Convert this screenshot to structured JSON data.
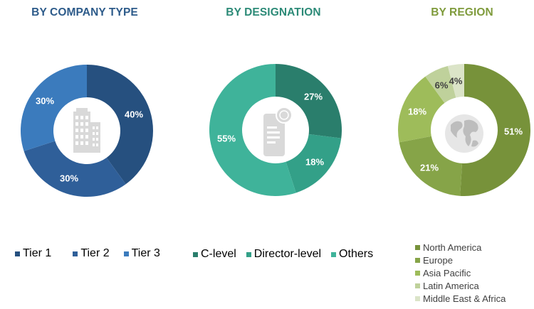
{
  "colors": {
    "tier1": "#26507f",
    "tier2": "#2f5f99",
    "tier3": "#3b7bbd",
    "clevel": "#2a7e6c",
    "director": "#33a088",
    "others": "#3fb39a",
    "north_america": "#77923a",
    "europe": "#86a448",
    "asia_pacific": "#9ebc5a",
    "latin_america": "#bfd19b",
    "mea": "#dbe4c8",
    "title_company": "#2d5b8a",
    "title_designation": "#2c8a77",
    "title_region": "#7f9b3c"
  },
  "chart_data": [
    {
      "type": "pie",
      "title": "BY COMPANY TYPE",
      "categories": [
        "Tier 1",
        "Tier 2",
        "Tier 3"
      ],
      "values": [
        40,
        30,
        30
      ],
      "labels": [
        "40%",
        "30%",
        "30%"
      ],
      "center_icon": "building-icon",
      "legend_position": "bottom"
    },
    {
      "type": "pie",
      "title": "BY DESIGNATION",
      "categories": [
        "C-level",
        "Director-level",
        "Others"
      ],
      "values": [
        27,
        18,
        55
      ],
      "labels": [
        "27%",
        "18%",
        "55%"
      ],
      "center_icon": "certificate-document-icon",
      "legend_position": "bottom"
    },
    {
      "type": "pie",
      "title": "BY REGION",
      "categories": [
        "North America",
        "Europe",
        "Asia Pacific",
        "Latin America",
        "Middle East & Africa"
      ],
      "values": [
        51,
        21,
        18,
        6,
        4
      ],
      "labels": [
        "51%",
        "21%",
        "18%",
        "6%",
        "4%"
      ],
      "center_icon": "globe-icon",
      "legend_position": "bottom"
    }
  ]
}
